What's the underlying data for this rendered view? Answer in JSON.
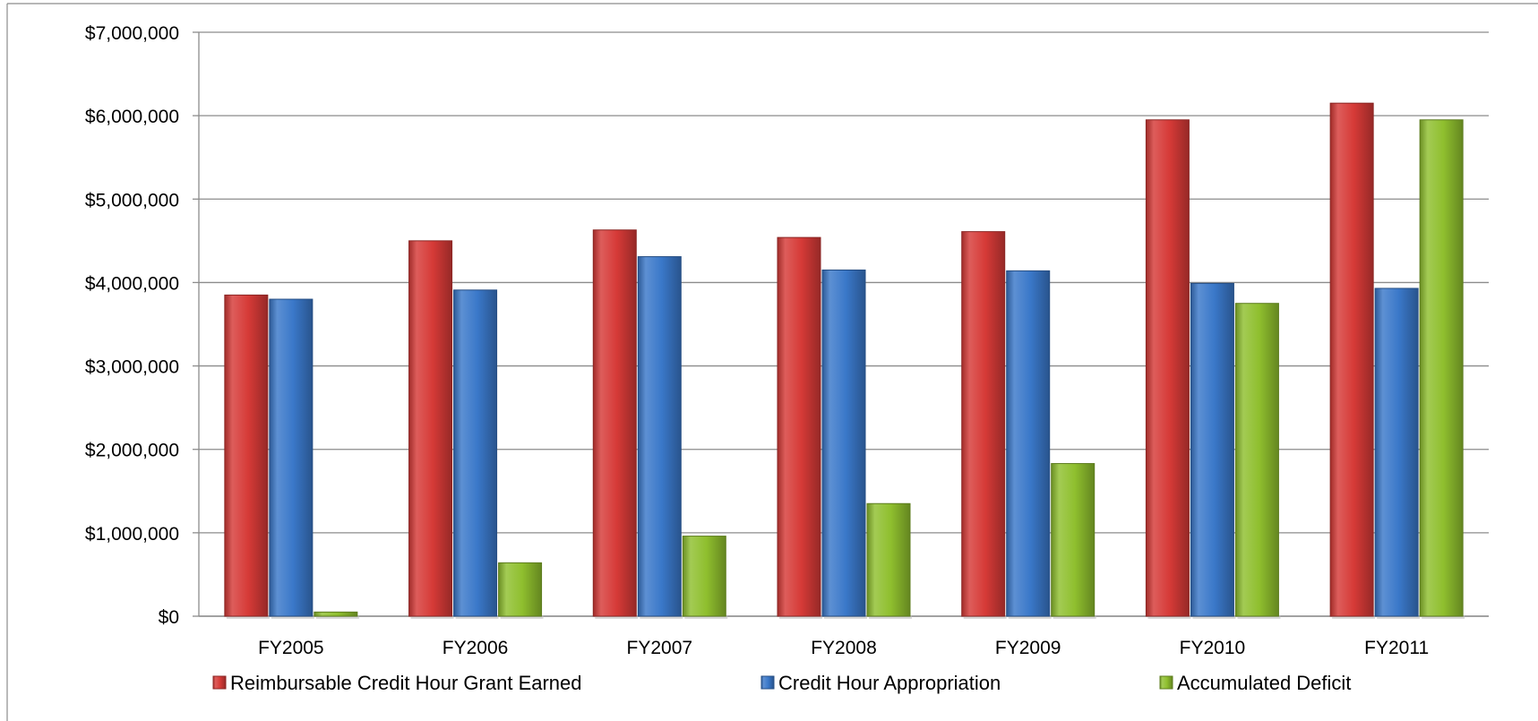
{
  "chart_data": {
    "type": "bar",
    "categories": [
      "FY2005",
      "FY2006",
      "FY2007",
      "FY2008",
      "FY2009",
      "FY2010",
      "FY2011"
    ],
    "series": [
      {
        "name": "Reimbursable Credit Hour Grant Earned",
        "color": "#d63a37",
        "values": [
          3850000,
          4500000,
          4630000,
          4540000,
          4610000,
          5950000,
          6150000
        ]
      },
      {
        "name": "Credit Hour Appropriation",
        "color": "#3a78c9",
        "values": [
          3800000,
          3910000,
          4310000,
          4150000,
          4140000,
          3990000,
          3930000
        ]
      },
      {
        "name": "Accumulated Deficit",
        "color": "#8fbf2e",
        "values": [
          50000,
          640000,
          960000,
          1350000,
          1830000,
          3750000,
          5950000
        ]
      }
    ],
    "ylim": [
      0,
      7000000
    ],
    "yticks": [
      0,
      1000000,
      2000000,
      3000000,
      4000000,
      5000000,
      6000000,
      7000000
    ],
    "ytick_labels": [
      "$0",
      "$1,000,000",
      "$2,000,000",
      "$3,000,000",
      "$4,000,000",
      "$5,000,000",
      "$6,000,000",
      "$7,000,000"
    ],
    "grid": true,
    "legend_position": "bottom",
    "title": "",
    "xlabel": "",
    "ylabel": ""
  }
}
